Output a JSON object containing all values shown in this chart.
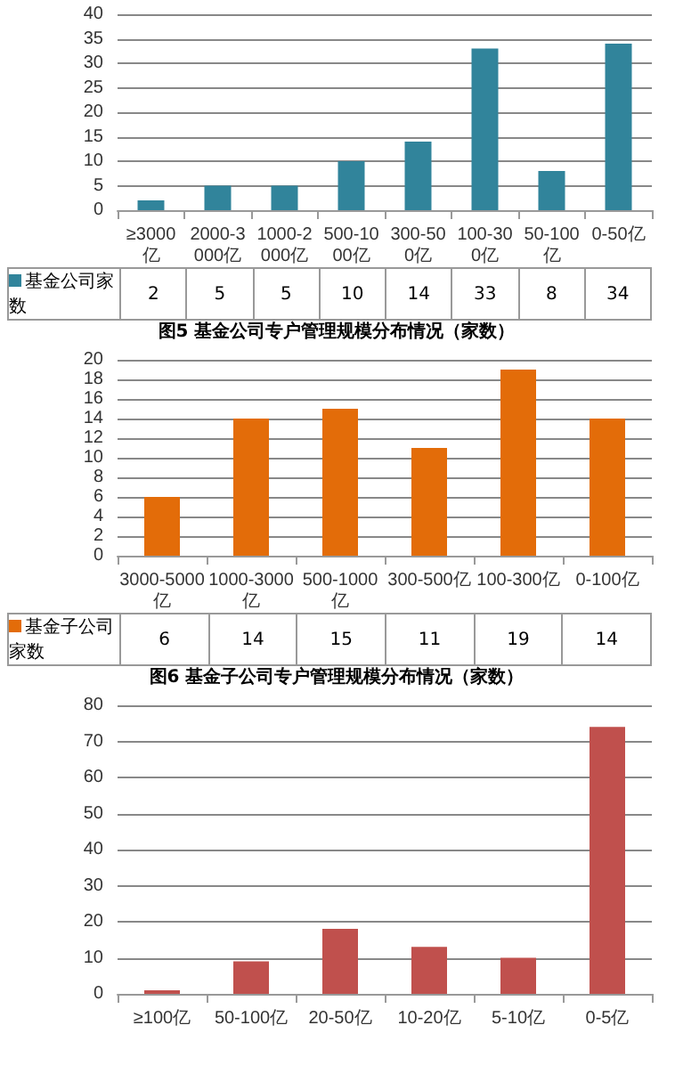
{
  "chart_data": [
    {
      "type": "bar",
      "title": "图5 基金公司专户管理规模分布情况（家数）",
      "categories": [
        "≥3000亿",
        "2000-3000亿",
        "1000-2000亿",
        "500-1000亿",
        "300-500亿",
        "100-300亿",
        "50-100亿",
        "0-50亿"
      ],
      "series": [
        {
          "name": "基金公司家数",
          "color": "#31849b",
          "values": [
            2,
            5,
            5,
            10,
            14,
            33,
            8,
            34
          ]
        }
      ],
      "ylim": [
        0,
        40
      ],
      "yticks": [
        0,
        5,
        10,
        15,
        20,
        25,
        30,
        35,
        40
      ],
      "grid": "y",
      "legend": "bottom",
      "data_labels": true
    },
    {
      "type": "bar",
      "title": "图6 基金子公司专户管理规模分布情况（家数）",
      "categories": [
        "3000-5000亿",
        "1000-3000亿",
        "500-1000亿",
        "300-500亿",
        "100-300亿",
        "0-100亿"
      ],
      "series": [
        {
          "name": "基金子公司家数",
          "color": "#e36c09",
          "values": [
            6,
            14,
            15,
            11,
            19,
            14
          ]
        }
      ],
      "ylim": [
        0,
        20
      ],
      "yticks": [
        0,
        2,
        4,
        6,
        8,
        10,
        12,
        14,
        16,
        18,
        20
      ],
      "grid": "y",
      "legend": "bottom",
      "data_labels": true
    },
    {
      "type": "bar",
      "categories": [
        "≥100亿",
        "50-100亿",
        "20-50亿",
        "10-20亿",
        "5-10亿",
        "0-5亿"
      ],
      "values": [
        1,
        9,
        18,
        13,
        10,
        74
      ],
      "color": "#c0504d",
      "ylim": [
        0,
        80
      ],
      "yticks": [
        0,
        10,
        20,
        30,
        40,
        50,
        60,
        70,
        80
      ],
      "grid": "y"
    }
  ]
}
